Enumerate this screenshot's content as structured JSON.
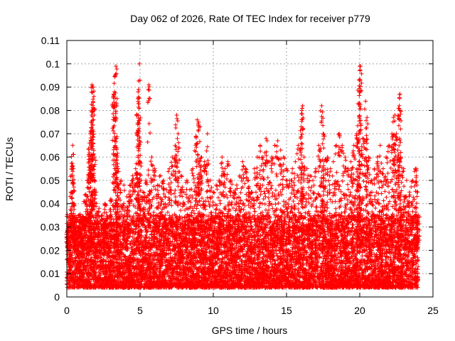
{
  "chart_data": {
    "type": "scatter",
    "title": "Day 062 of 2026, Rate Of TEC Index for receiver p779",
    "xlabel": "GPS time / hours",
    "ylabel": "ROTI / TECUs",
    "xlim": [
      0,
      25
    ],
    "ylim": [
      0,
      0.11
    ],
    "xticks": [
      0,
      5,
      10,
      15,
      20,
      25
    ],
    "xtick_labels": [
      "0",
      "5",
      "10",
      "15",
      "20",
      "25"
    ],
    "yticks": [
      0,
      0.01,
      0.02,
      0.03,
      0.04,
      0.05,
      0.06,
      0.07,
      0.08,
      0.09,
      0.1,
      0.11
    ],
    "ytick_labels": [
      "0",
      "0.01",
      "0.02",
      "0.03",
      "0.04",
      "0.05",
      "0.06",
      "0.07",
      "0.08",
      "0.09",
      "0.1",
      "0.11"
    ],
    "grid": true,
    "marker": "+",
    "color": "#ff0000",
    "series": [
      {
        "name": "ROTI",
        "points": [
          [
            0.05,
            0.028
          ],
          [
            0.1,
            0.031
          ],
          [
            0.15,
            0.022
          ],
          [
            0.2,
            0.012
          ],
          [
            0.3,
            0.045
          ],
          [
            0.35,
            0.056
          ],
          [
            0.4,
            0.065
          ],
          [
            0.45,
            0.055
          ],
          [
            0.5,
            0.04
          ],
          [
            0.55,
            0.035
          ],
          [
            0.6,
            0.025
          ],
          [
            0.7,
            0.018
          ],
          [
            0.8,
            0.03
          ],
          [
            0.9,
            0.034
          ],
          [
            1.0,
            0.027
          ],
          [
            1.1,
            0.033
          ],
          [
            1.2,
            0.041
          ],
          [
            1.3,
            0.044
          ],
          [
            1.4,
            0.05
          ],
          [
            1.5,
            0.061
          ],
          [
            1.55,
            0.066
          ],
          [
            1.6,
            0.07
          ],
          [
            1.65,
            0.075
          ],
          [
            1.7,
            0.078
          ],
          [
            1.72,
            0.091
          ],
          [
            1.75,
            0.09
          ],
          [
            1.8,
            0.09
          ],
          [
            1.85,
            0.086
          ],
          [
            1.9,
            0.06
          ],
          [
            2.0,
            0.045
          ],
          [
            2.2,
            0.038
          ],
          [
            2.4,
            0.035
          ],
          [
            2.6,
            0.04
          ],
          [
            2.8,
            0.034
          ],
          [
            3.0,
            0.042
          ],
          [
            3.2,
            0.087
          ],
          [
            3.25,
            0.088
          ],
          [
            3.3,
            0.095
          ],
          [
            3.35,
            0.099
          ],
          [
            3.4,
            0.068
          ],
          [
            3.45,
            0.06
          ],
          [
            3.5,
            0.055
          ],
          [
            3.7,
            0.05
          ],
          [
            3.9,
            0.048
          ],
          [
            4.1,
            0.043
          ],
          [
            4.3,
            0.048
          ],
          [
            4.5,
            0.052
          ],
          [
            4.7,
            0.055
          ],
          [
            4.8,
            0.078
          ],
          [
            4.85,
            0.085
          ],
          [
            4.9,
            0.089
          ],
          [
            4.95,
            0.1
          ],
          [
            5.0,
            0.058
          ],
          [
            5.2,
            0.045
          ],
          [
            5.4,
            0.05
          ],
          [
            5.6,
            0.091
          ],
          [
            5.8,
            0.06
          ],
          [
            6.0,
            0.055
          ],
          [
            6.2,
            0.048
          ],
          [
            6.4,
            0.052
          ],
          [
            6.6,
            0.05
          ],
          [
            6.8,
            0.046
          ],
          [
            7.0,
            0.055
          ],
          [
            7.2,
            0.06
          ],
          [
            7.4,
            0.065
          ],
          [
            7.5,
            0.078
          ],
          [
            7.6,
            0.07
          ],
          [
            7.8,
            0.052
          ],
          [
            8.0,
            0.045
          ],
          [
            8.2,
            0.05
          ],
          [
            8.4,
            0.046
          ],
          [
            8.6,
            0.055
          ],
          [
            8.8,
            0.065
          ],
          [
            8.9,
            0.076
          ],
          [
            9.0,
            0.075
          ],
          [
            9.1,
            0.073
          ],
          [
            9.2,
            0.06
          ],
          [
            9.4,
            0.058
          ],
          [
            9.6,
            0.07
          ],
          [
            9.8,
            0.05
          ],
          [
            10.0,
            0.045
          ],
          [
            10.2,
            0.048
          ],
          [
            10.4,
            0.05
          ],
          [
            10.6,
            0.06
          ],
          [
            10.8,
            0.055
          ],
          [
            11.0,
            0.058
          ],
          [
            11.2,
            0.05
          ],
          [
            11.4,
            0.045
          ],
          [
            11.6,
            0.048
          ],
          [
            11.8,
            0.052
          ],
          [
            12.0,
            0.058
          ],
          [
            12.2,
            0.055
          ],
          [
            12.4,
            0.05
          ],
          [
            12.6,
            0.045
          ],
          [
            12.8,
            0.055
          ],
          [
            13.0,
            0.06
          ],
          [
            13.2,
            0.065
          ],
          [
            13.4,
            0.06
          ],
          [
            13.6,
            0.068
          ],
          [
            13.8,
            0.058
          ],
          [
            14.0,
            0.06
          ],
          [
            14.2,
            0.065
          ],
          [
            14.4,
            0.067
          ],
          [
            14.6,
            0.063
          ],
          [
            14.8,
            0.06
          ],
          [
            15.0,
            0.055
          ],
          [
            15.2,
            0.05
          ],
          [
            15.4,
            0.055
          ],
          [
            15.6,
            0.058
          ],
          [
            15.8,
            0.065
          ],
          [
            16.0,
            0.073
          ],
          [
            16.05,
            0.08
          ],
          [
            16.1,
            0.082
          ],
          [
            16.2,
            0.06
          ],
          [
            16.4,
            0.055
          ],
          [
            16.6,
            0.052
          ],
          [
            16.8,
            0.05
          ],
          [
            17.0,
            0.055
          ],
          [
            17.2,
            0.065
          ],
          [
            17.4,
            0.082
          ],
          [
            17.5,
            0.07
          ],
          [
            17.6,
            0.069
          ],
          [
            17.8,
            0.06
          ],
          [
            18.0,
            0.055
          ],
          [
            18.2,
            0.058
          ],
          [
            18.4,
            0.065
          ],
          [
            18.6,
            0.07
          ],
          [
            18.8,
            0.065
          ],
          [
            19.0,
            0.06
          ],
          [
            19.2,
            0.055
          ],
          [
            19.4,
            0.058
          ],
          [
            19.6,
            0.065
          ],
          [
            19.8,
            0.07
          ],
          [
            19.9,
            0.083
          ],
          [
            19.95,
            0.093
          ],
          [
            20.0,
            0.099
          ],
          [
            20.05,
            0.099
          ],
          [
            20.2,
            0.068
          ],
          [
            20.4,
            0.084
          ],
          [
            20.5,
            0.077
          ],
          [
            20.6,
            0.06
          ],
          [
            20.8,
            0.05
          ],
          [
            21.0,
            0.055
          ],
          [
            21.2,
            0.06
          ],
          [
            21.4,
            0.065
          ],
          [
            21.6,
            0.055
          ],
          [
            21.8,
            0.06
          ],
          [
            22.0,
            0.065
          ],
          [
            22.2,
            0.07
          ],
          [
            22.3,
            0.077
          ],
          [
            22.4,
            0.078
          ],
          [
            22.5,
            0.07
          ],
          [
            22.6,
            0.063
          ],
          [
            22.7,
            0.082
          ],
          [
            22.75,
            0.087
          ],
          [
            22.8,
            0.06
          ],
          [
            23.0,
            0.055
          ],
          [
            23.2,
            0.05
          ],
          [
            23.4,
            0.045
          ],
          [
            23.6,
            0.05
          ],
          [
            23.8,
            0.055
          ],
          [
            23.9,
            0.048
          ],
          [
            24.0,
            0.035
          ]
        ]
      }
    ],
    "baseline_band": {
      "x_range": [
        0,
        24
      ],
      "typical_low": 0.004,
      "typical_high": 0.035,
      "approx_point_count": 9000
    }
  }
}
